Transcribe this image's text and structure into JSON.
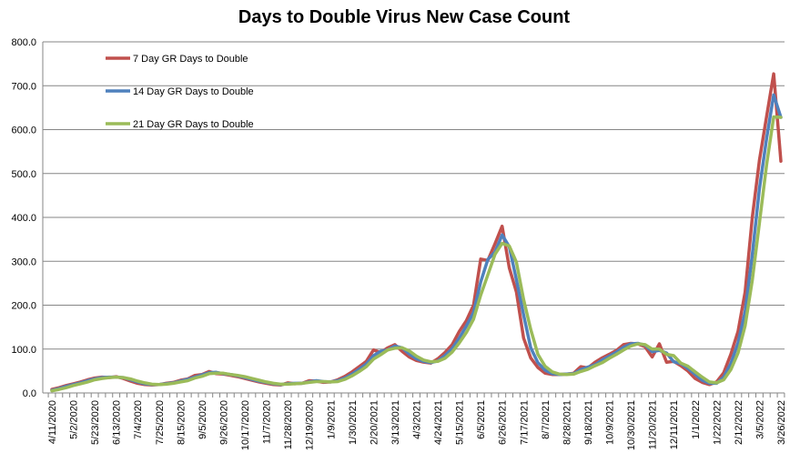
{
  "chart_data": {
    "type": "line",
    "title": "Days to Double Virus New Case Count",
    "xlabel": "",
    "ylabel": "",
    "ylim": [
      0,
      800
    ],
    "yticks": [
      "0.0",
      "100.0",
      "200.0",
      "300.0",
      "400.0",
      "500.0",
      "600.0",
      "700.0",
      "800.0"
    ],
    "grid": true,
    "legend_position": "top-left",
    "x": [
      "4/11/2020",
      "4/18/2020",
      "4/25/2020",
      "5/2/2020",
      "5/9/2020",
      "5/16/2020",
      "5/23/2020",
      "5/30/2020",
      "6/6/2020",
      "6/13/2020",
      "6/20/2020",
      "6/27/2020",
      "7/4/2020",
      "7/11/2020",
      "7/18/2020",
      "7/25/2020",
      "8/1/2020",
      "8/8/2020",
      "8/15/2020",
      "8/22/2020",
      "8/29/2020",
      "9/5/2020",
      "9/12/2020",
      "9/19/2020",
      "9/26/2020",
      "10/3/2020",
      "10/10/2020",
      "10/17/2020",
      "10/24/2020",
      "10/31/2020",
      "11/7/2020",
      "11/14/2020",
      "11/21/2020",
      "11/28/2020",
      "12/5/2020",
      "12/12/2020",
      "12/19/2020",
      "12/26/2020",
      "1/2/2021",
      "1/9/2021",
      "1/16/2021",
      "1/23/2021",
      "1/30/2021",
      "2/6/2021",
      "2/13/2021",
      "2/20/2021",
      "2/27/2021",
      "3/6/2021",
      "3/13/2021",
      "3/20/2021",
      "3/27/2021",
      "4/3/2021",
      "4/10/2021",
      "4/17/2021",
      "4/24/2021",
      "5/1/2021",
      "5/8/2021",
      "5/15/2021",
      "5/22/2021",
      "5/29/2021",
      "6/5/2021",
      "6/12/2021",
      "6/19/2021",
      "6/26/2021",
      "7/3/2021",
      "7/10/2021",
      "7/17/2021",
      "7/24/2021",
      "7/31/2021",
      "8/7/2021",
      "8/14/2021",
      "8/21/2021",
      "8/28/2021",
      "9/4/2021",
      "9/11/2021",
      "9/18/2021",
      "9/25/2021",
      "10/2/2021",
      "10/9/2021",
      "10/16/2021",
      "10/23/2021",
      "10/30/2021",
      "11/6/2021",
      "11/13/2021",
      "11/20/2021",
      "11/27/2021",
      "12/4/2021",
      "12/11/2021",
      "12/18/2021",
      "12/25/2021",
      "1/1/2022",
      "1/8/2022",
      "1/15/2022",
      "1/22/2022",
      "1/29/2022",
      "2/5/2022",
      "2/12/2022",
      "2/19/2022",
      "2/26/2022",
      "3/5/2022",
      "3/12/2022",
      "3/19/2022",
      "3/26/2022"
    ],
    "series": [
      {
        "name": "7 Day GR Days to Double",
        "color": "#C0504D",
        "values": [
          8,
          12,
          17,
          21,
          25,
          30,
          34,
          36,
          35,
          37,
          33,
          27,
          22,
          19,
          18,
          19,
          22,
          24,
          29,
          32,
          40,
          42,
          49,
          44,
          43,
          40,
          37,
          33,
          29,
          25,
          22,
          19,
          18,
          23,
          21,
          22,
          28,
          27,
          24,
          25,
          30,
          38,
          48,
          60,
          72,
          98,
          92,
          103,
          110,
          95,
          82,
          74,
          70,
          68,
          78,
          92,
          110,
          140,
          165,
          200,
          305,
          302,
          340,
          380,
          285,
          230,
          125,
          80,
          58,
          45,
          42,
          42,
          43,
          45,
          60,
          57,
          70,
          80,
          88,
          97,
          110,
          113,
          112,
          105,
          82,
          112,
          70,
          72,
          62,
          50,
          33,
          24,
          19,
          25,
          46,
          88,
          140,
          230,
          400,
          530,
          630,
          727,
          528
        ]
      },
      {
        "name": "14 Day GR Days to Double",
        "color": "#4F81BD",
        "values": [
          6,
          10,
          15,
          19,
          23,
          28,
          32,
          35,
          36,
          36,
          35,
          30,
          25,
          21,
          19,
          19,
          21,
          23,
          27,
          31,
          36,
          41,
          46,
          47,
          44,
          42,
          39,
          35,
          31,
          27,
          24,
          21,
          19,
          21,
          22,
          22,
          25,
          28,
          26,
          25,
          28,
          34,
          43,
          54,
          66,
          85,
          95,
          98,
          107,
          103,
          89,
          78,
          72,
          69,
          73,
          85,
          101,
          125,
          153,
          183,
          253,
          304,
          321,
          360,
          333,
          258,
          178,
          103,
          69,
          52,
          44,
          42,
          43,
          44,
          53,
          59,
          64,
          75,
          84,
          93,
          104,
          112,
          113,
          109,
          94,
          97,
          91,
          71,
          67,
          56,
          42,
          29,
          22,
          22,
          36,
          67,
          114,
          185,
          315,
          465,
          580,
          679,
          628
        ]
      },
      {
        "name": "21 Day GR Days to Double",
        "color": "#9BBB59",
        "values": [
          5,
          8,
          12,
          17,
          21,
          25,
          30,
          33,
          35,
          36,
          35,
          32,
          27,
          23,
          20,
          19,
          20,
          22,
          25,
          28,
          34,
          38,
          44,
          45,
          45,
          42,
          40,
          37,
          33,
          29,
          25,
          22,
          20,
          20,
          21,
          22,
          24,
          26,
          26,
          25,
          26,
          31,
          39,
          49,
          60,
          77,
          87,
          98,
          102,
          103,
          96,
          84,
          75,
          71,
          72,
          79,
          93,
          114,
          138,
          168,
          223,
          269,
          316,
          341,
          335,
          298,
          213,
          145,
          88,
          61,
          48,
          43,
          42,
          43,
          49,
          54,
          62,
          69,
          79,
          88,
          98,
          107,
          112,
          110,
          100,
          100,
          88,
          85,
          68,
          61,
          48,
          36,
          25,
          23,
          30,
          53,
          91,
          153,
          257,
          387,
          520,
          629,
          628
        ]
      }
    ]
  }
}
